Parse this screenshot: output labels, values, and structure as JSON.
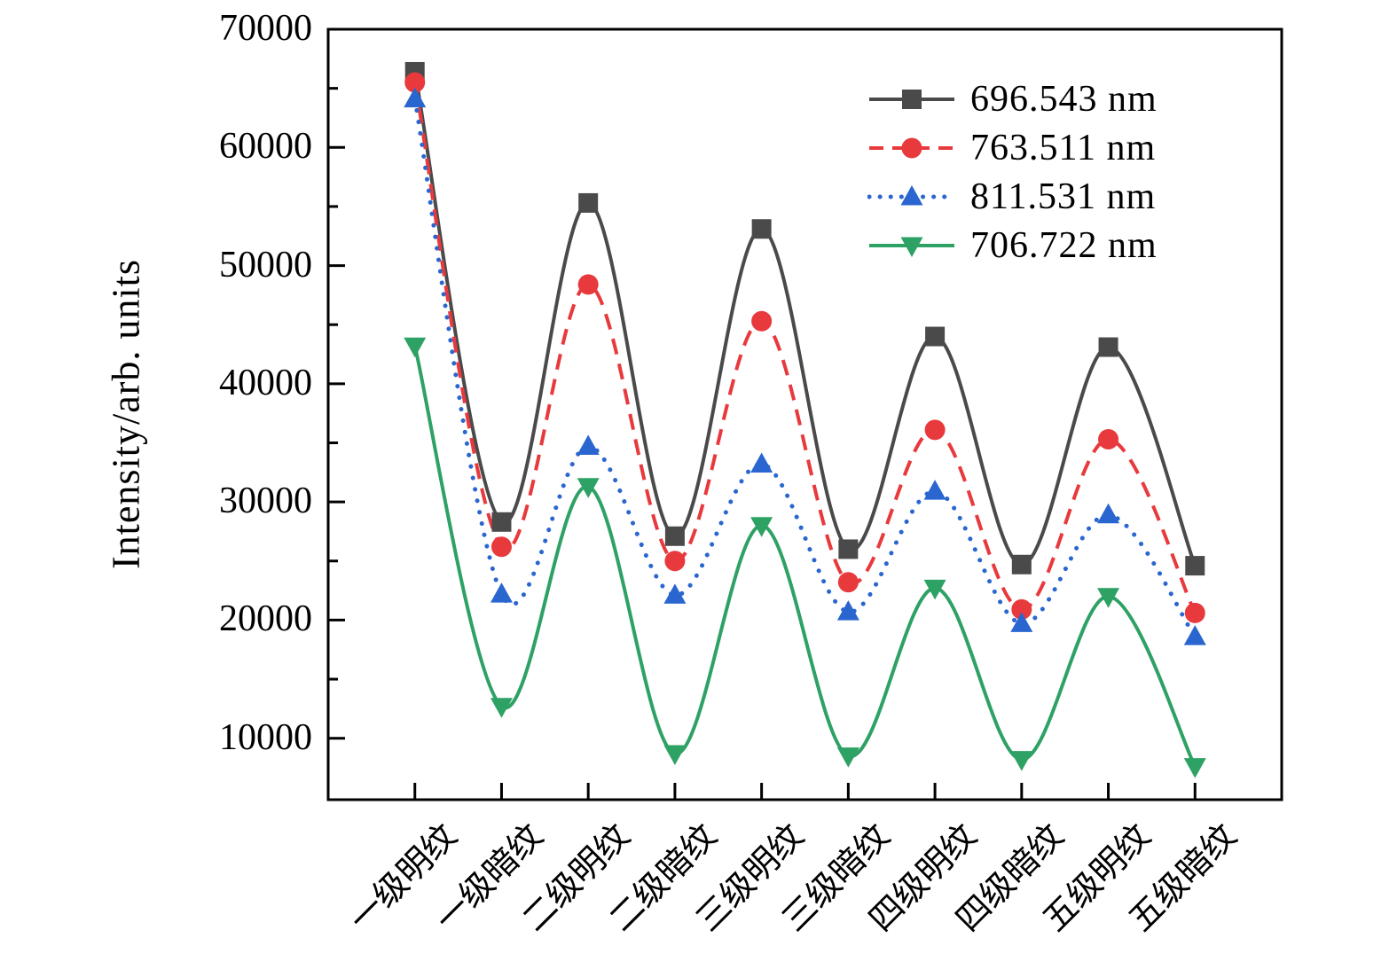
{
  "figure": {
    "background": "#ffffff",
    "frame_color": "#000000"
  },
  "y_axis": {
    "tick_labels": [
      "70000",
      "60000",
      "50000",
      "40000",
      "30000",
      "20000",
      "10000"
    ],
    "tick_values": [
      70000,
      60000,
      50000,
      40000,
      30000,
      20000,
      10000
    ],
    "minor_tick_values": [
      65000,
      55000,
      45000,
      35000,
      25000,
      15000
    ]
  },
  "chart_data": {
    "type": "line",
    "title": "",
    "xlabel": "",
    "ylabel": "Intensity/arb. units",
    "ylim": [
      4800,
      70000
    ],
    "yticks": [
      10000,
      20000,
      30000,
      40000,
      50000,
      60000,
      70000
    ],
    "grid": false,
    "legend_position": "upper right",
    "smooth_curves": true,
    "categories": [
      "一级明纹",
      "一级暗纹",
      "二级明纹",
      "二级暗纹",
      "三级明纹",
      "三级暗纹",
      "四级明纹",
      "四级暗纹",
      "五级明纹",
      "五级暗纹"
    ],
    "series": [
      {
        "name": "696.543 nm",
        "color": "#4a4a4a",
        "marker": "square",
        "line_style": "solid",
        "values": [
          66400,
          28300,
          55300,
          27100,
          53100,
          26000,
          44000,
          24700,
          43100,
          24600
        ]
      },
      {
        "name": "763.511 nm",
        "color": "#e8393d",
        "marker": "circle",
        "line_style": "dashed",
        "values": [
          65500,
          26200,
          48400,
          25000,
          45300,
          23200,
          36100,
          20900,
          35300,
          20600
        ]
      },
      {
        "name": "811.531 nm",
        "color": "#2a66cf",
        "marker": "triangle-up",
        "line_style": "dotted",
        "values": [
          64100,
          22200,
          34700,
          22100,
          33200,
          20700,
          30900,
          19700,
          28900,
          18600
        ]
      },
      {
        "name": "706.722 nm",
        "color": "#2ea164",
        "marker": "triangle-down",
        "line_style": "solid",
        "values": [
          43200,
          12700,
          31300,
          8700,
          28000,
          8500,
          22700,
          8200,
          22000,
          7600
        ]
      }
    ]
  }
}
